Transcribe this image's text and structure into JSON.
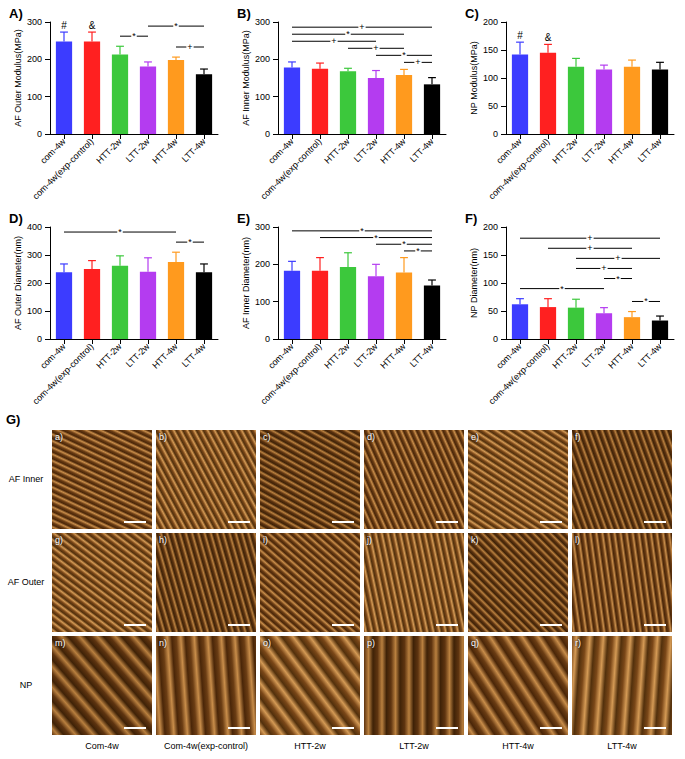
{
  "chart_data": [
    {
      "type": "bar",
      "title": "A)",
      "y_label": "AF Outer Modulus(MPa)",
      "categories": [
        "com-4w",
        "com-4w(exp-control)",
        "HTT-2w",
        "LTT-2w",
        "HTT-4w",
        "LTT-4w"
      ],
      "values": [
        248,
        248,
        213,
        181,
        198,
        160
      ],
      "errors": [
        25,
        25,
        22,
        12,
        8,
        14
      ],
      "colors": [
        "#3c3cff",
        "#ff2020",
        "#3cc83c",
        "#b43cf0",
        "#ff9a1e",
        "#000000"
      ],
      "ylim": [
        0,
        300
      ],
      "yticks": [
        0,
        100,
        200,
        300
      ],
      "grid": false,
      "bar_marks": [
        "#",
        "&",
        null,
        null,
        null,
        null
      ],
      "brackets": [
        {
          "from": "HTT-4w",
          "to": "LTT-4w",
          "label": "+"
        },
        {
          "from": "HTT-2w",
          "to": "LTT-2w",
          "label": "*"
        },
        {
          "from": "LTT-2w",
          "to": "LTT-4w",
          "label": "*"
        }
      ]
    },
    {
      "type": "bar",
      "title": "B)",
      "y_label": "AF Inner Modulus(MPa)",
      "categories": [
        "com-4w",
        "com-4w(exp-control)",
        "HTT-2w",
        "LTT-2w",
        "HTT-4w",
        "LTT-4w"
      ],
      "values": [
        178,
        175,
        168,
        150,
        158,
        133
      ],
      "errors": [
        15,
        15,
        8,
        20,
        15,
        18
      ],
      "colors": [
        "#3c3cff",
        "#ff2020",
        "#3cc83c",
        "#b43cf0",
        "#ff9a1e",
        "#000000"
      ],
      "ylim": [
        0,
        300
      ],
      "yticks": [
        0,
        100,
        200,
        300
      ],
      "grid": false,
      "brackets": [
        {
          "from": "HTT-4w",
          "to": "LTT-4w",
          "label": "+"
        },
        {
          "from": "LTT-2w",
          "to": "LTT-4w",
          "label": "*"
        },
        {
          "from": "HTT-2w",
          "to": "HTT-4w",
          "label": "+"
        },
        {
          "from": "com-4w",
          "to": "LTT-2w",
          "label": "+"
        },
        {
          "from": "com-4w",
          "to": "HTT-4w",
          "label": "*"
        },
        {
          "from": "com-4w",
          "to": "LTT-4w",
          "label": "+"
        }
      ]
    },
    {
      "type": "bar",
      "title": "C)",
      "y_label": "NP Modulus(MPa)",
      "categories": [
        "com-4w",
        "com-4w(exp-control)",
        "HTT-2w",
        "LTT-2w",
        "HTT-4w",
        "LTT-4w"
      ],
      "values": [
        142,
        145,
        120,
        115,
        120,
        115
      ],
      "errors": [
        22,
        15,
        15,
        8,
        12,
        13
      ],
      "colors": [
        "#3c3cff",
        "#ff2020",
        "#3cc83c",
        "#b43cf0",
        "#ff9a1e",
        "#000000"
      ],
      "ylim": [
        0,
        200
      ],
      "yticks": [
        0,
        50,
        100,
        150,
        200
      ],
      "grid": false,
      "bar_marks": [
        "#",
        "&",
        null,
        null,
        null,
        null
      ]
    },
    {
      "type": "bar",
      "title": "D)",
      "y_label": "AF Outer Diameter(nm)",
      "categories": [
        "com-4w",
        "com-4w(exp-control)",
        "HTT-2w",
        "LTT-2w",
        "HTT-4w",
        "LTT-4w"
      ],
      "values": [
        238,
        250,
        262,
        240,
        275,
        238
      ],
      "errors": [
        30,
        30,
        35,
        50,
        35,
        30
      ],
      "colors": [
        "#3c3cff",
        "#ff2020",
        "#3cc83c",
        "#b43cf0",
        "#ff9a1e",
        "#000000"
      ],
      "ylim": [
        0,
        400
      ],
      "yticks": [
        0,
        100,
        200,
        300,
        400
      ],
      "grid": false,
      "brackets": [
        {
          "from": "HTT-4w",
          "to": "LTT-4w",
          "label": "*"
        },
        {
          "from": "com-4w",
          "to": "HTT-4w",
          "label": "*"
        }
      ]
    },
    {
      "type": "bar",
      "title": "E)",
      "y_label": "AF Inner Diameter(nm)",
      "categories": [
        "com-4w",
        "com-4w(exp-control)",
        "HTT-2w",
        "LTT-2w",
        "HTT-4w",
        "LTT-4w"
      ],
      "values": [
        183,
        183,
        193,
        168,
        178,
        143
      ],
      "errors": [
        25,
        35,
        38,
        32,
        40,
        15
      ],
      "colors": [
        "#3c3cff",
        "#ff2020",
        "#3cc83c",
        "#b43cf0",
        "#ff9a1e",
        "#000000"
      ],
      "ylim": [
        0,
        300
      ],
      "yticks": [
        0,
        100,
        200,
        300
      ],
      "grid": false,
      "brackets": [
        {
          "from": "HTT-4w",
          "to": "LTT-4w",
          "label": "*"
        },
        {
          "from": "LTT-2w",
          "to": "LTT-4w",
          "label": "*"
        },
        {
          "from": "com-4w(exp-control)",
          "to": "LTT-4w",
          "label": "*"
        },
        {
          "from": "com-4w",
          "to": "LTT-4w",
          "label": "*"
        }
      ]
    },
    {
      "type": "bar",
      "title": "F)",
      "y_label": "NP Diameter(nm)",
      "categories": [
        "com-4w",
        "com-4w(exp-control)",
        "HTT-2w",
        "LTT-2w",
        "HTT-4w",
        "LTT-4w"
      ],
      "values": [
        62,
        57,
        56,
        46,
        39,
        33
      ],
      "errors": [
        10,
        15,
        15,
        10,
        10,
        8
      ],
      "colors": [
        "#3c3cff",
        "#ff2020",
        "#3cc83c",
        "#b43cf0",
        "#ff9a1e",
        "#000000"
      ],
      "ylim": [
        0,
        200
      ],
      "yticks": [
        0,
        50,
        100,
        150,
        200
      ],
      "grid": false,
      "brackets": [
        {
          "from": "HTT-4w",
          "to": "LTT-4w",
          "label": "*"
        },
        {
          "from": "com-4w",
          "to": "LTT-2w",
          "label": "*"
        },
        {
          "from": "LTT-2w",
          "to": "HTT-4w",
          "label": "*"
        },
        {
          "from": "HTT-2w",
          "to": "HTT-4w",
          "label": "+"
        },
        {
          "from": "HTT-2w",
          "to": "LTT-4w",
          "label": "+"
        },
        {
          "from": "com-4w(exp-control)",
          "to": "HTT-4w",
          "label": "+"
        },
        {
          "from": "com-4w",
          "to": "LTT-4w",
          "label": "+"
        }
      ]
    }
  ],
  "image_grid": {
    "title": "G)",
    "rows": [
      "AF Inner",
      "AF Outer",
      "NP"
    ],
    "columns": [
      "Com-4w",
      "Com-4w(exp-control)",
      "HTT-2w",
      "LTT-2w",
      "HTT-4w",
      "LTT-4w"
    ],
    "panel_labels": [
      "a)",
      "b)",
      "c)",
      "d)",
      "e)",
      "f)",
      "g)",
      "h)",
      "i)",
      "j)",
      "k)",
      "l)",
      "m)",
      "n)",
      "o)",
      "p)",
      "q)",
      "r)"
    ]
  }
}
